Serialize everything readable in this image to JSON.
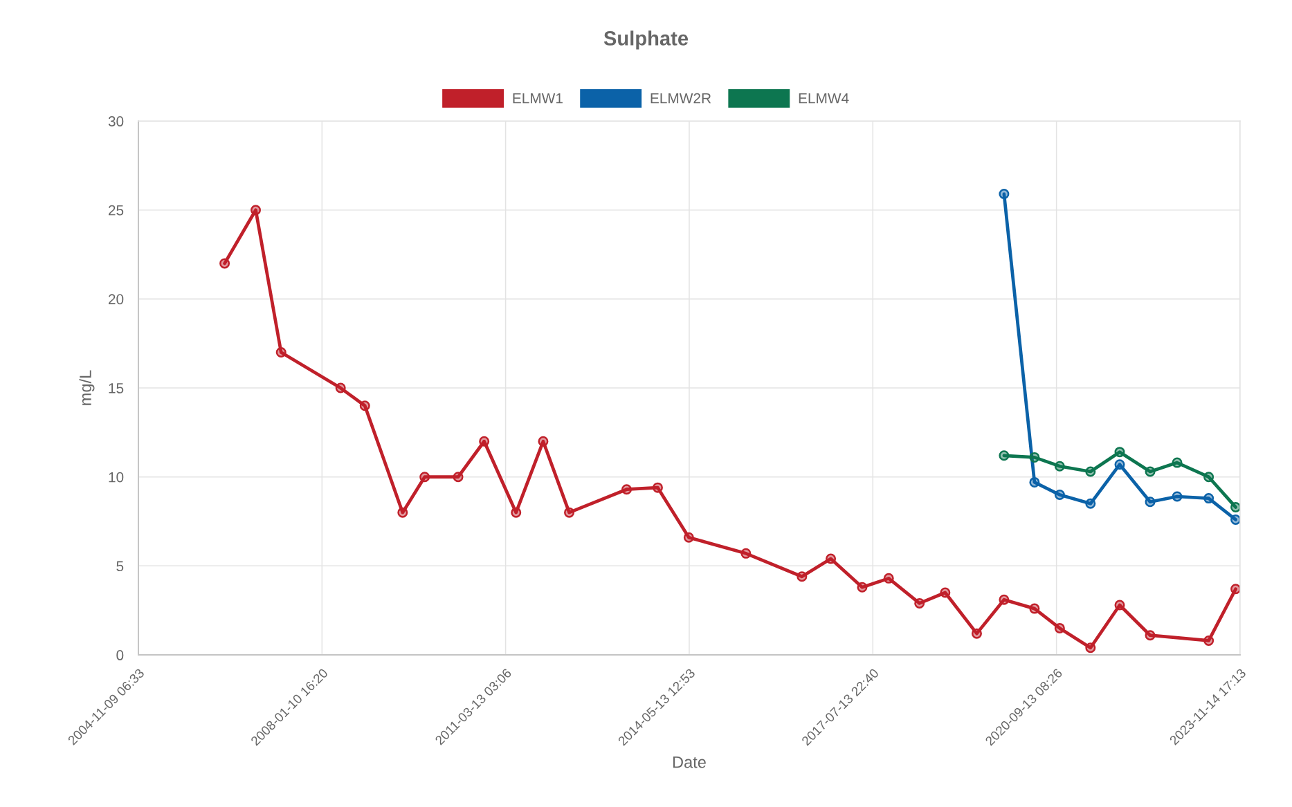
{
  "chart_data": {
    "type": "line",
    "title": "Sulphate",
    "xlabel": "Date",
    "ylabel": "mg/L",
    "xlim": [
      "2004-11-09T06:33",
      "2023-11-14T17:13"
    ],
    "xticks": [
      {
        "value": "2004-11-09T06:33",
        "label": "2004-11-09 06:33"
      },
      {
        "value": "2008-01-10T16:20",
        "label": "2008-01-10 16:20"
      },
      {
        "value": "2011-03-13T03:06",
        "label": "2011-03-13 03:06"
      },
      {
        "value": "2014-05-13T12:53",
        "label": "2014-05-13 12:53"
      },
      {
        "value": "2017-07-13T22:40",
        "label": "2017-07-13 22:40"
      },
      {
        "value": "2020-09-13T08:26",
        "label": "2020-09-13 08:26"
      },
      {
        "value": "2023-11-14T17:13",
        "label": "2023-11-14 17:13"
      }
    ],
    "ylim": [
      0,
      30
    ],
    "yticks": [
      0,
      5,
      10,
      15,
      20,
      25,
      30
    ],
    "grid": true,
    "legend": "top",
    "marker": "circle",
    "line_style": "solid",
    "series": [
      {
        "name": "ELMW1",
        "color": "#c0202a",
        "x": [
          "2006-05-07",
          "2006-11-19",
          "2007-04-28",
          "2008-05-07",
          "2008-10-07",
          "2009-06-02",
          "2009-10-19",
          "2010-05-18",
          "2010-10-29",
          "2011-05-18",
          "2011-11-05",
          "2012-04-17",
          "2013-04-14",
          "2013-10-27",
          "2014-05-11",
          "2015-05-06",
          "2016-04-23",
          "2016-10-22",
          "2017-05-08",
          "2017-10-22",
          "2018-05-04",
          "2018-10-13",
          "2019-04-30",
          "2019-10-19",
          "2020-04-28",
          "2020-10-04",
          "2021-04-16",
          "2021-10-17",
          "2022-04-27",
          "2023-05-01",
          "2023-10-18"
        ],
        "values": [
          22,
          25,
          17,
          15,
          14,
          8,
          10,
          10,
          12,
          8,
          12,
          8,
          9.3,
          9.4,
          6.6,
          5.7,
          4.4,
          5.4,
          3.8,
          4.3,
          2.9,
          3.5,
          1.2,
          3.1,
          2.6,
          1.5,
          0.4,
          2.8,
          1.1,
          0.8,
          3.7
        ]
      },
      {
        "name": "ELMW2R",
        "color": "#0b62a8",
        "x": [
          "2019-10-19",
          "2020-04-28",
          "2020-10-04",
          "2021-04-16",
          "2021-10-17",
          "2022-04-27",
          "2022-10-14",
          "2023-05-01",
          "2023-10-18"
        ],
        "values": [
          25.9,
          9.7,
          9.0,
          8.5,
          10.7,
          8.6,
          8.9,
          8.8,
          7.6
        ]
      },
      {
        "name": "ELMW4",
        "color": "#0d7650",
        "x": [
          "2019-10-19",
          "2020-04-28",
          "2020-10-04",
          "2021-04-16",
          "2021-10-17",
          "2022-04-27",
          "2022-10-14",
          "2023-05-01",
          "2023-10-18"
        ],
        "values": [
          11.2,
          11.1,
          10.6,
          10.3,
          11.4,
          10.3,
          10.8,
          10.0,
          8.3
        ]
      }
    ]
  }
}
